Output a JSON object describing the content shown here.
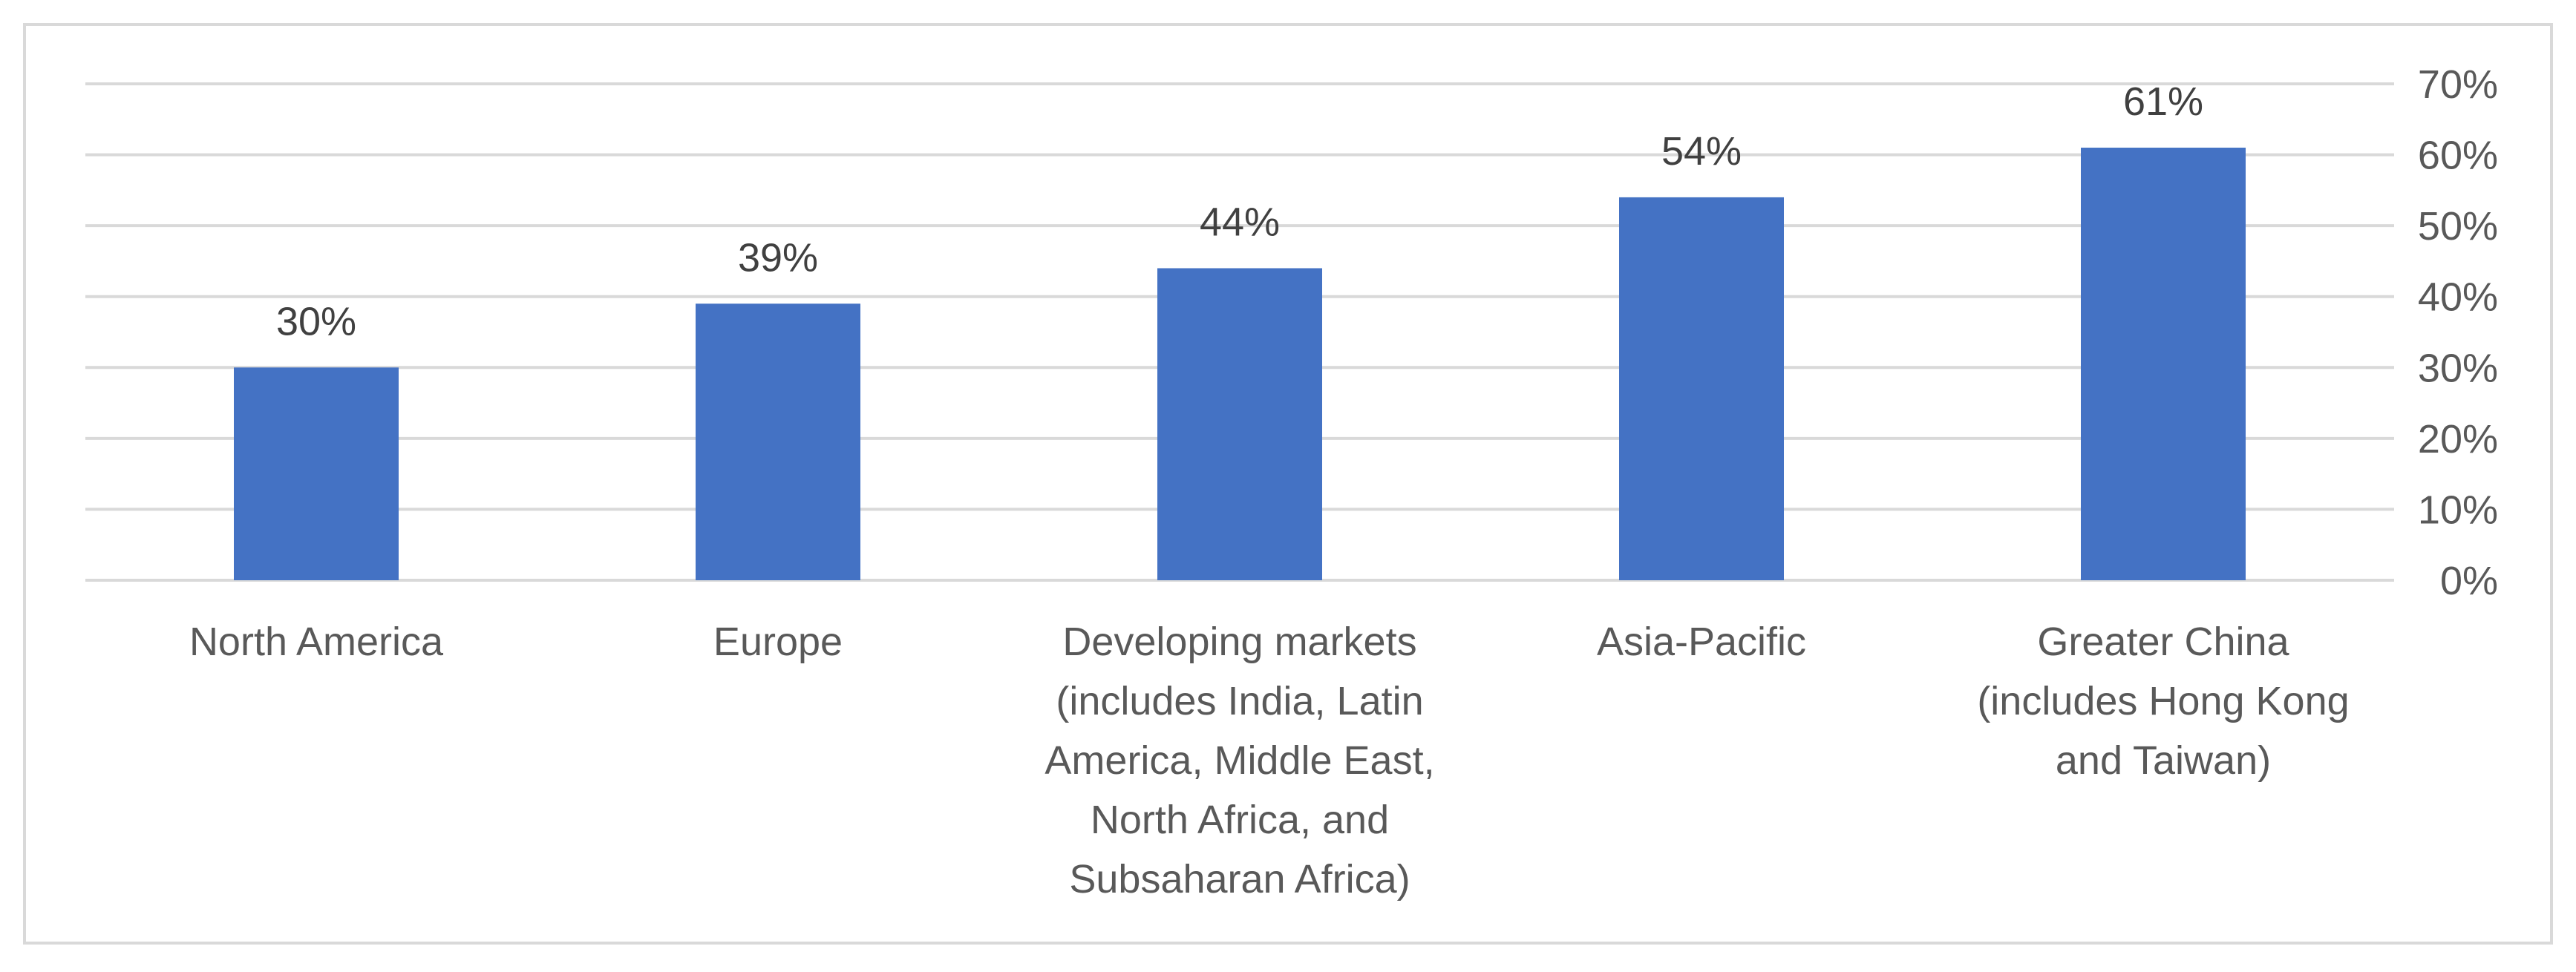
{
  "chart_data": {
    "type": "bar",
    "categories": [
      "North America",
      "Europe",
      "Developing markets (includes India, Latin America, Middle East, North Africa, and Subsaharan Africa)",
      "Asia-Pacific",
      "Greater China (includes Hong Kong and Taiwan)"
    ],
    "category_lines": [
      [
        "North America"
      ],
      [
        "Europe"
      ],
      [
        "Developing markets",
        "(includes India, Latin",
        "America, Middle East,",
        "North Africa, and",
        "Subsaharan Africa)"
      ],
      [
        "Asia-Pacific"
      ],
      [
        "Greater China",
        "(includes Hong Kong",
        "and Taiwan)"
      ]
    ],
    "values": [
      30,
      39,
      44,
      54,
      61
    ],
    "data_labels": [
      "30%",
      "39%",
      "44%",
      "54%",
      "61%"
    ],
    "title": "",
    "xlabel": "",
    "ylabel": "",
    "ylim": [
      0,
      70
    ],
    "y_ticks": [
      0,
      10,
      20,
      30,
      40,
      50,
      60,
      70
    ],
    "y_tick_labels": [
      "0%",
      "10%",
      "20%",
      "30%",
      "40%",
      "50%",
      "60%",
      "70%"
    ],
    "y_axis_side": "right",
    "grid": true,
    "legend": "none",
    "bar_color": "#4472c4"
  }
}
